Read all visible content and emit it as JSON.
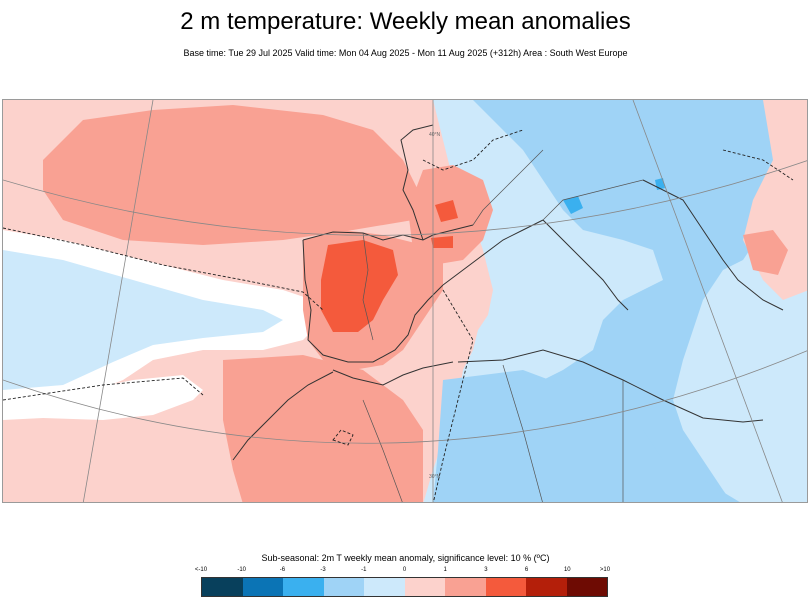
{
  "header": {
    "title": "2 m temperature: Weekly mean anomalies",
    "subtitle": "Base time: Tue 29 Jul 2025 Valid time: Mon 04 Aug 2025 - Mon 11 Aug 2025 (+312h) Area : South West Europe"
  },
  "map": {
    "region": "South West Europe",
    "graticule_labels": [
      "40°N",
      "30°N"
    ],
    "colors": {
      "strong_warm": "#f45a3c",
      "warm": "#f9a193",
      "weak_warm": "#fcd2cc",
      "neutral": "#ffffff",
      "weak_cold": "#cde9fb",
      "cold": "#9fd3f6",
      "strong_cold": "#3ab0ef"
    }
  },
  "legend": {
    "title": "Sub-seasonal: 2m T weekly mean anomaly, significance level: 10 % (ºC)",
    "ticks": [
      "<-10",
      "-10",
      "-6",
      "-3",
      "-1",
      "0",
      "1",
      "3",
      "6",
      "10",
      ">10"
    ],
    "colors": [
      "#08405c",
      "#0b74b5",
      "#3ab0ef",
      "#9fd3f6",
      "#cde9fb",
      "#fcd2cc",
      "#f9a193",
      "#f45a3c",
      "#b41f0a",
      "#6e0b03"
    ]
  }
}
